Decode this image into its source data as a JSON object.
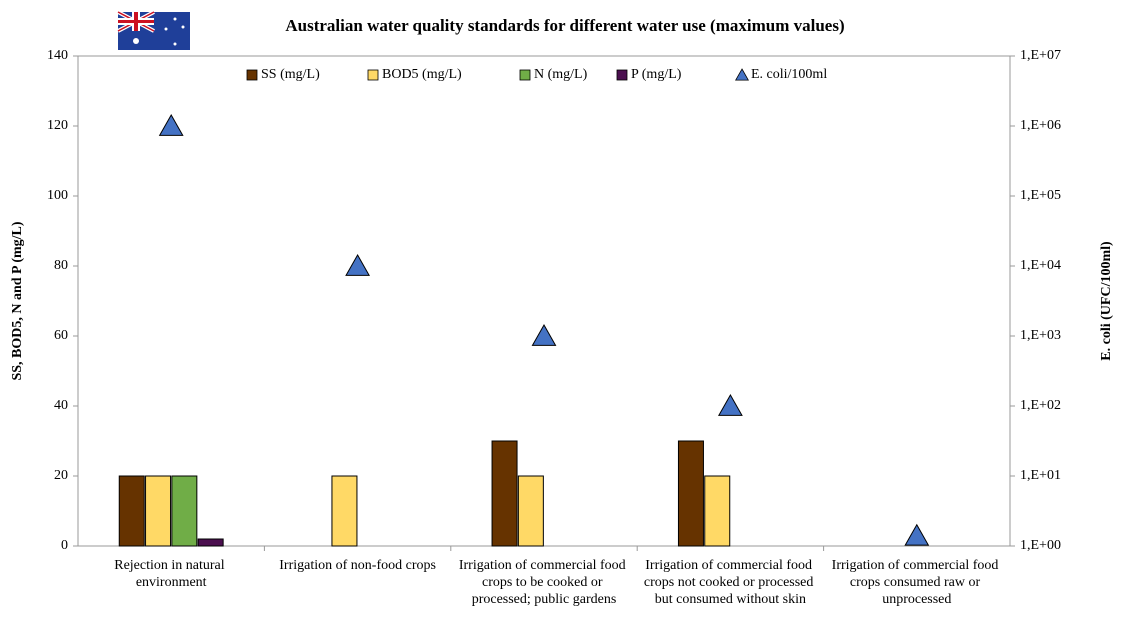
{
  "chart_data": {
    "type": "bar",
    "title": "Australian water quality standards for different water use (maximum values)",
    "y_label": "SS, BOD5, N and P (mg/L)",
    "y2_label": "E. coli (UFC/100ml)",
    "categories": [
      "Rejection in natural environment",
      "Irrigation of non-food crops",
      "Irrigation of commercial food crops to be cooked or processed; public gardens",
      "Irrigation of commercial food crops not cooked or processed but consumed without skin",
      "Irrigation of commercial food crops consumed raw or unprocessed"
    ],
    "series": [
      {
        "name": "SS (mg/L)",
        "color": "#663300",
        "values": [
          20,
          null,
          30,
          30,
          null
        ]
      },
      {
        "name": "BOD5 (mg/L)",
        "color": "#ffd966",
        "values": [
          20,
          20,
          20,
          20,
          null
        ]
      },
      {
        "name": "N (mg/L)",
        "color": "#70ad47",
        "values": [
          20,
          null,
          null,
          null,
          null
        ]
      },
      {
        "name": "P (mg/L)",
        "color": "#4b0f4f",
        "values": [
          2,
          null,
          null,
          null,
          null
        ]
      },
      {
        "name": "E. coli/100ml",
        "color": "#4472c4",
        "type": "scatter",
        "axis": "y2",
        "values": [
          1000000,
          10000,
          1000,
          100,
          1.4
        ]
      }
    ],
    "ylim": [
      0,
      140
    ],
    "yticks": [
      0,
      20,
      40,
      60,
      80,
      100,
      120,
      140
    ],
    "y2lim": [
      1,
      10000000
    ],
    "y2log": true,
    "y2ticks": [
      {
        "value": 1,
        "label": "1,E+00"
      },
      {
        "value": 10,
        "label": "1,E+01"
      },
      {
        "value": 100,
        "label": "1,E+02"
      },
      {
        "value": 1000,
        "label": "1,E+03"
      },
      {
        "value": 10000,
        "label": "1,E+04"
      },
      {
        "value": 100000,
        "label": "1,E+05"
      },
      {
        "value": 1000000,
        "label": "1,E+06"
      },
      {
        "value": 10000000,
        "label": "1,E+07"
      }
    ],
    "legend": "top"
  }
}
